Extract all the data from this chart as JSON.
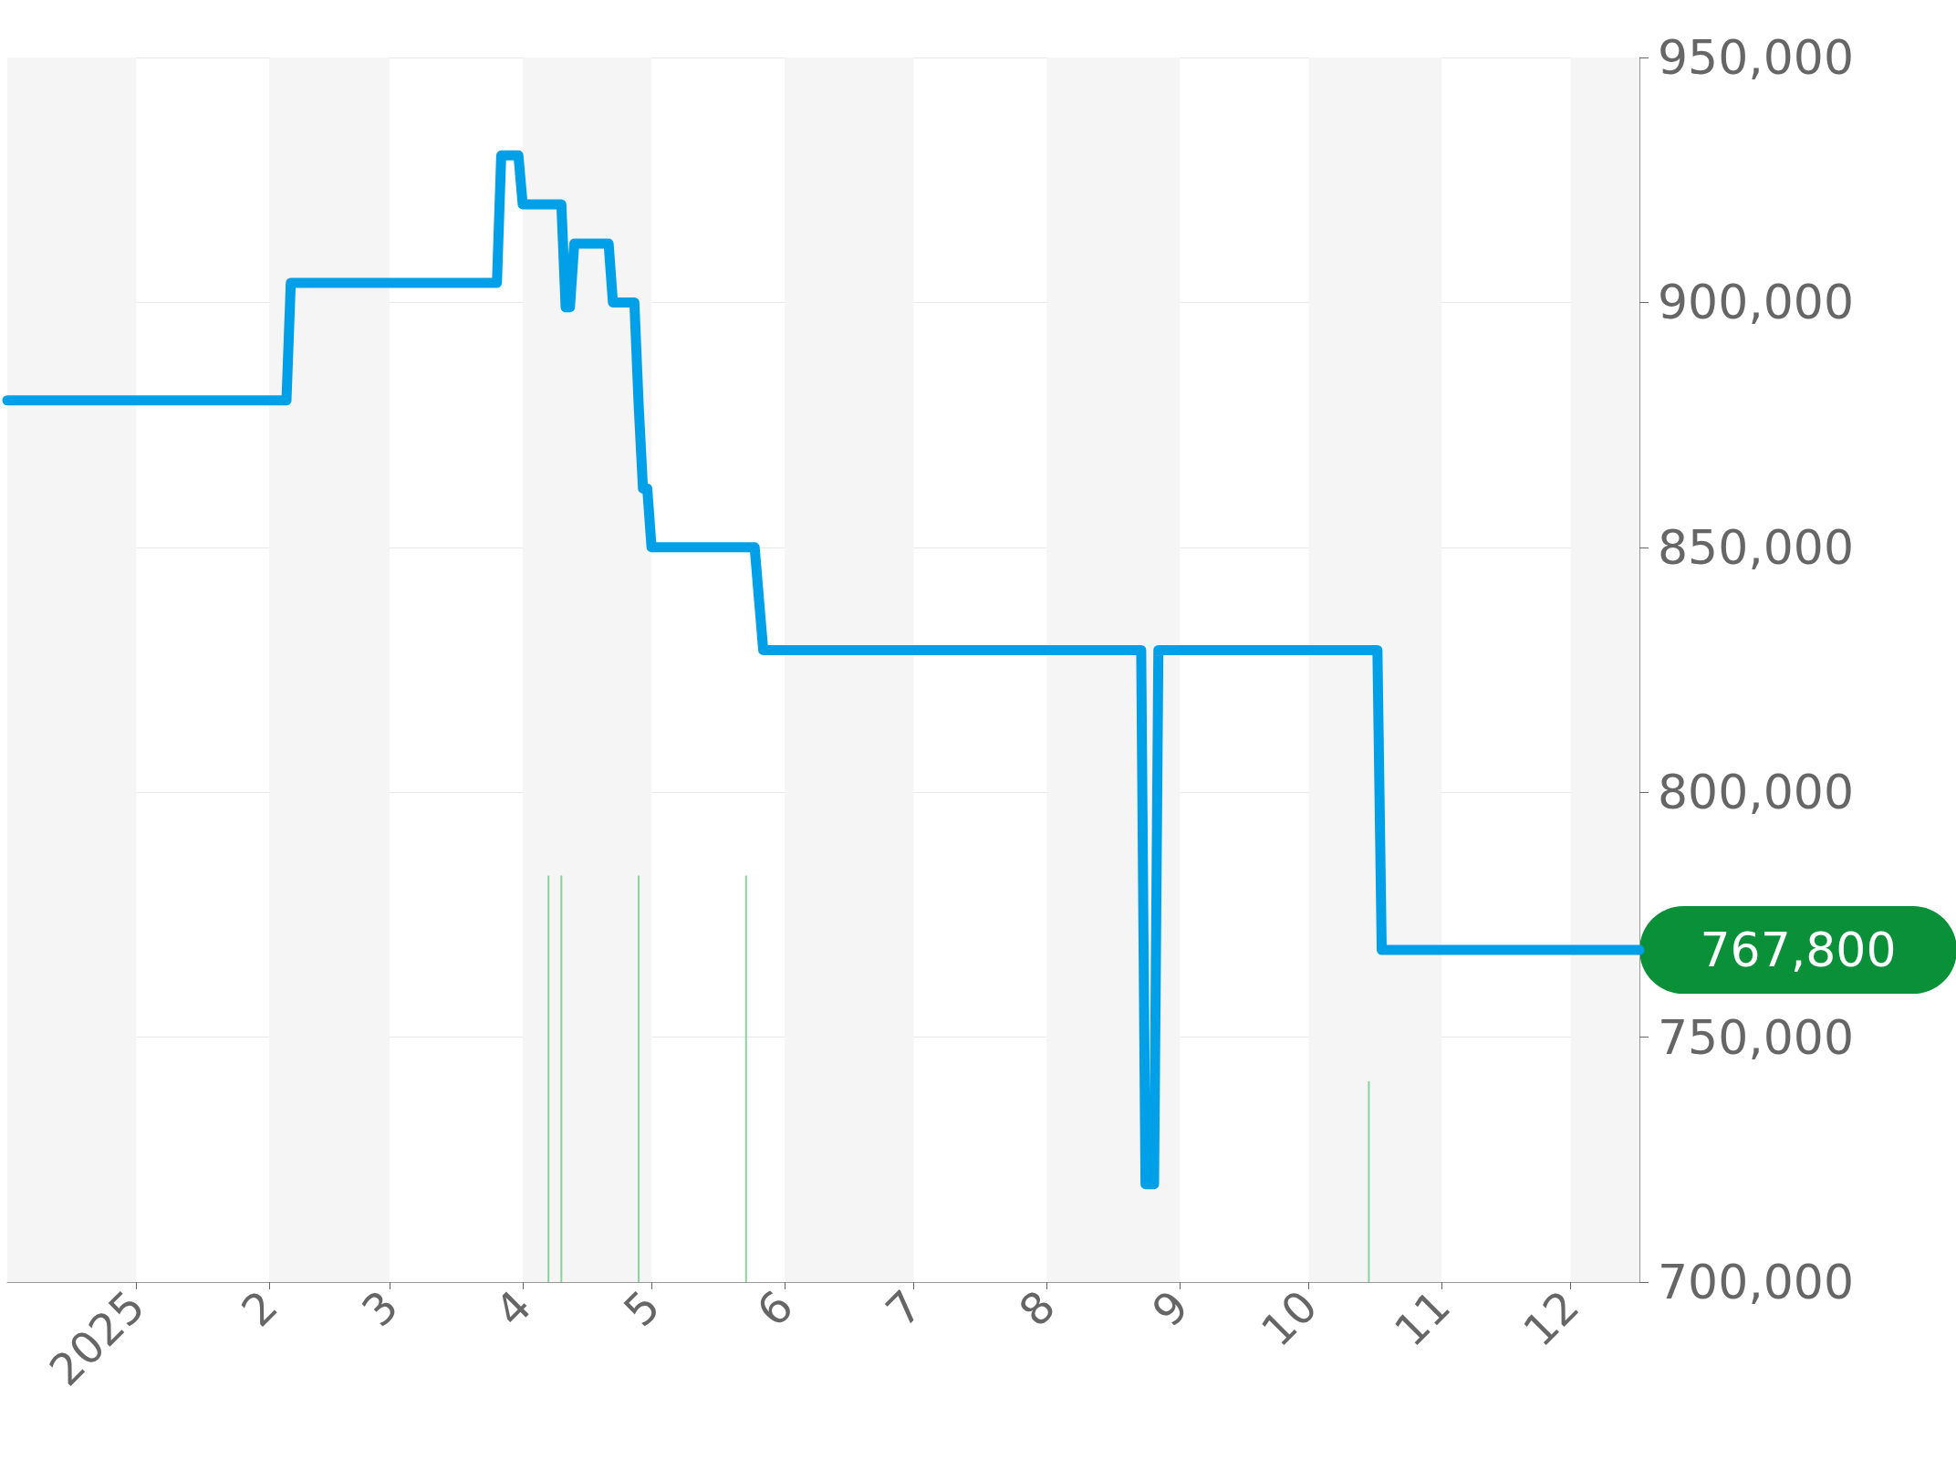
{
  "chart_data": {
    "type": "line",
    "series": [
      {
        "color": "#00a0e9",
        "x": [
          "2024-12-02",
          "2025-02-05",
          "2025-02-06",
          "2025-03-26",
          "2025-03-27",
          "2025-03-31",
          "2025-04-01",
          "2025-04-10",
          "2025-04-11",
          "2025-04-12",
          "2025-04-13",
          "2025-04-21",
          "2025-04-22",
          "2025-04-27",
          "2025-04-28",
          "2025-04-29",
          "2025-04-30",
          "2025-05-01",
          "2025-05-25",
          "2025-05-27",
          "2025-08-23",
          "2025-08-24",
          "2025-08-26",
          "2025-08-27",
          "2025-10-17",
          "2025-10-18",
          "2025-12-17"
        ],
        "values": [
          880000,
          880000,
          904000,
          904000,
          930000,
          930000,
          920000,
          920000,
          899000,
          899000,
          912000,
          912000,
          900000,
          900000,
          879000,
          862000,
          862000,
          850000,
          850000,
          829000,
          829000,
          720000,
          720000,
          829000,
          829000,
          767800,
          767800
        ]
      },
      {
        "type": "bar",
        "color": "#88d39a",
        "x": [
          "2025-04-07",
          "2025-04-10",
          "2025-04-28",
          "2025-05-23",
          "2025-08-24",
          "2025-10-15"
        ],
        "values": [
          783000,
          783000,
          783000,
          783000,
          null,
          741000
        ]
      }
    ],
    "xlim": [
      "2024-12-02",
      "2025-12-17"
    ],
    "xticks": [
      {
        "value": "2025-01-01",
        "label": "2025"
      },
      {
        "value": "2025-02-01",
        "label": "2"
      },
      {
        "value": "2025-03-01",
        "label": "3"
      },
      {
        "value": "2025-04-01",
        "label": "4"
      },
      {
        "value": "2025-05-01",
        "label": "5"
      },
      {
        "value": "2025-06-01",
        "label": "6"
      },
      {
        "value": "2025-07-01",
        "label": "7"
      },
      {
        "value": "2025-08-01",
        "label": "8"
      },
      {
        "value": "2025-09-01",
        "label": "9"
      },
      {
        "value": "2025-10-01",
        "label": "10"
      },
      {
        "value": "2025-11-01",
        "label": "11"
      },
      {
        "value": "2025-12-01",
        "label": "12"
      }
    ],
    "ylim": [
      700000,
      950000
    ],
    "yticks": [
      {
        "value": 700000,
        "label": "700,000"
      },
      {
        "value": 750000,
        "label": "750,000"
      },
      {
        "value": 800000,
        "label": "800,000"
      },
      {
        "value": 850000,
        "label": "850,000"
      },
      {
        "value": 900000,
        "label": "900,000"
      },
      {
        "value": 950000,
        "label": "950,000"
      }
    ],
    "bands": [
      {
        "axis": "x",
        "from": "2024-12-02",
        "to": "2025-01-01",
        "color": "#f5f5f5"
      },
      {
        "axis": "x",
        "from": "2025-02-01",
        "to": "2025-03-01",
        "color": "#f5f5f5"
      },
      {
        "axis": "x",
        "from": "2025-04-01",
        "to": "2025-05-01",
        "color": "#f5f5f5"
      },
      {
        "axis": "x",
        "from": "2025-06-01",
        "to": "2025-07-01",
        "color": "#f5f5f5"
      },
      {
        "axis": "x",
        "from": "2025-08-01",
        "to": "2025-09-01",
        "color": "#f5f5f5"
      },
      {
        "axis": "x",
        "from": "2025-10-01",
        "to": "2025-11-01",
        "color": "#f5f5f5"
      },
      {
        "axis": "x",
        "from": "2025-12-01",
        "to": "2025-12-17",
        "color": "#f5f5f5"
      }
    ],
    "annotations": [
      {
        "text": "767,800",
        "x": "2025-12-17",
        "y": 767800
      }
    ],
    "grid": "y",
    "line_style": "solid"
  }
}
